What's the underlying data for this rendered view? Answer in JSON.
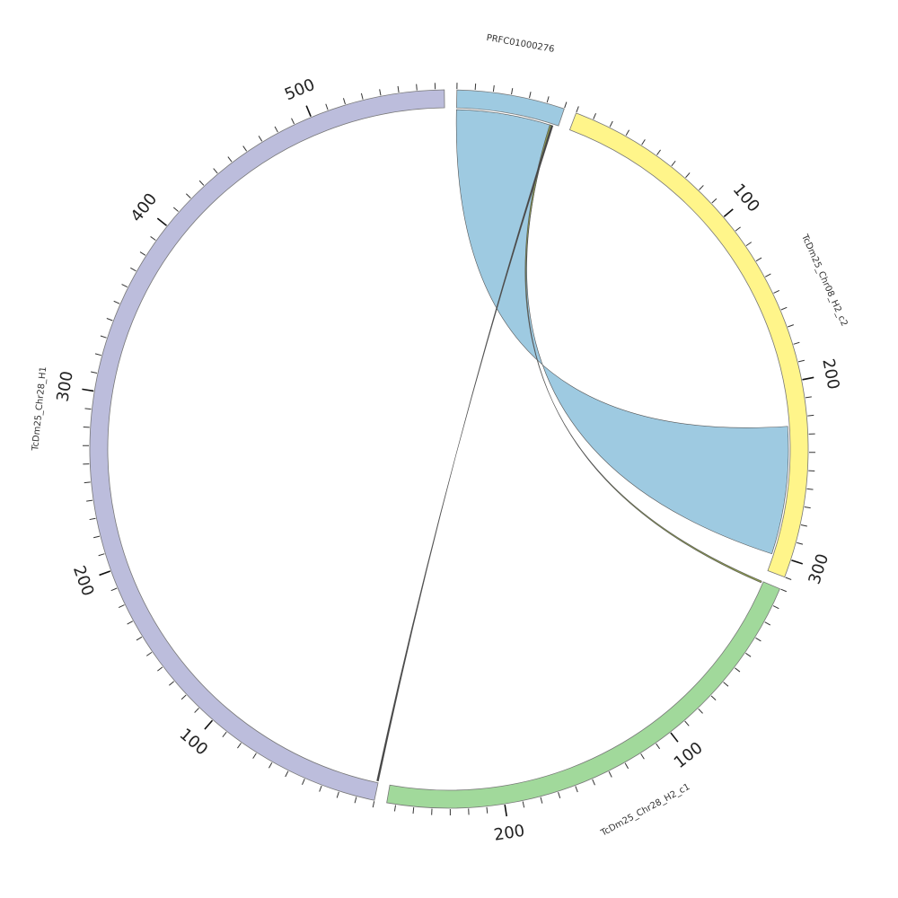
{
  "chart_data": {
    "type": "chord",
    "title": "",
    "segments": [
      {
        "id": "PRFC01000276",
        "label": "PRFC01000276",
        "length": 60,
        "color": "#9ECAE1"
      },
      {
        "id": "TcDm25_Chr08_H2_c2",
        "label": "TcDm25_Chr08_H2_c2",
        "length": 310,
        "color": "#FFF58A"
      },
      {
        "id": "TcDm25_Chr28_H2_c1",
        "label": "TcDm25_Chr28_H2_c1",
        "length": 265,
        "color": "#A1D99B"
      },
      {
        "id": "TcDm25_Chr28_H1",
        "label": "TcDm25_Chr28_H1",
        "length": 575,
        "color": "#BCBDDC"
      }
    ],
    "tick_interval": 10,
    "tick_label_interval": 100,
    "links": [
      {
        "source": "PRFC01000276",
        "source_range": [
          0,
          56
        ],
        "target": "TcDm25_Chr08_H2_c2",
        "target_range": [
          225,
          300
        ],
        "color": "#9ECAE1"
      },
      {
        "source": "PRFC01000276",
        "source_range": [
          55,
          56
        ],
        "target": "TcDm25_Chr28_H2_c1",
        "target_range": [
          0,
          1
        ],
        "color": "#8C9A4E"
      },
      {
        "source": "PRFC01000276",
        "source_range": [
          56,
          57
        ],
        "target": "TcDm25_Chr28_H1",
        "target_range": [
          0,
          1
        ],
        "color": "#444444"
      }
    ]
  }
}
